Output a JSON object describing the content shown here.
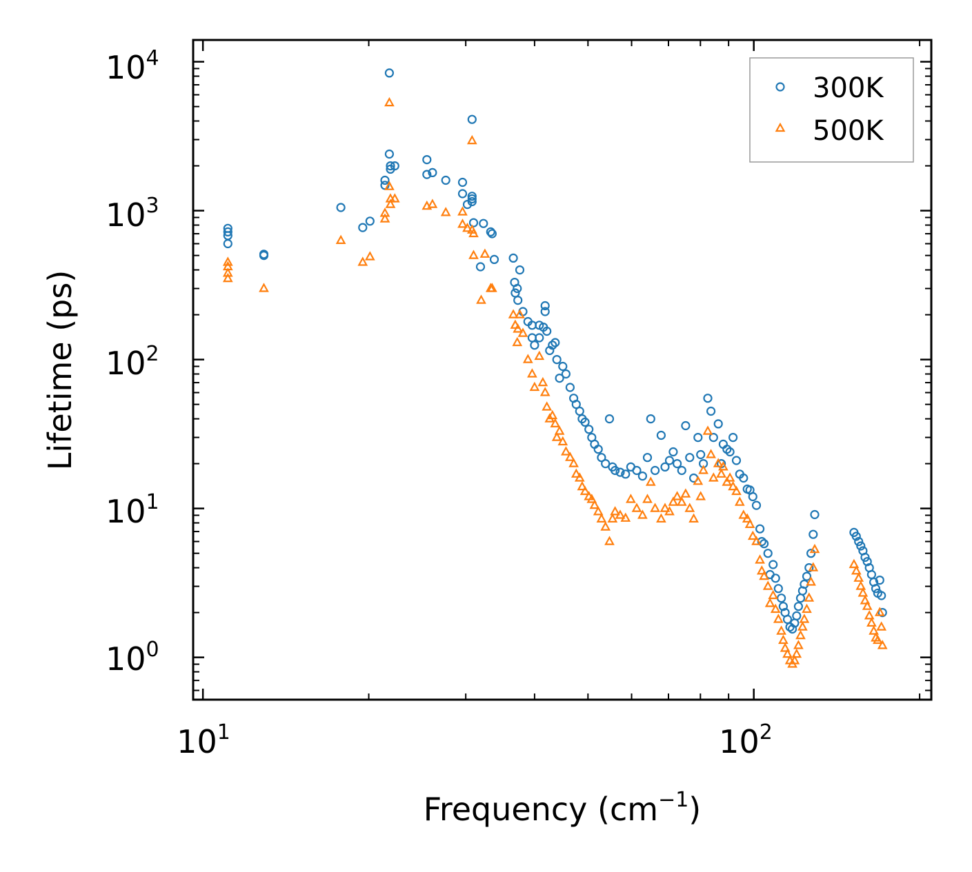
{
  "chart_data": {
    "type": "scatter",
    "xscale": "log",
    "yscale": "log",
    "xlim": [
      9.6,
      210
    ],
    "ylim": [
      0.52,
      14000
    ],
    "xlabel": "Frequency",
    "xlabel_unit_base": "cm",
    "xlabel_unit_exp": "−1",
    "ylabel": "Lifetime (ps)",
    "legend_position": "top-right",
    "x_major_ticks": [
      {
        "value": 10,
        "base": "10",
        "exp": "1"
      },
      {
        "value": 100,
        "base": "10",
        "exp": "2"
      }
    ],
    "y_major_ticks": [
      {
        "value": 1,
        "base": "10",
        "exp": "0"
      },
      {
        "value": 10,
        "base": "10",
        "exp": "1"
      },
      {
        "value": 100,
        "base": "10",
        "exp": "2"
      },
      {
        "value": 1000,
        "base": "10",
        "exp": "3"
      },
      {
        "value": 10000,
        "base": "10",
        "exp": "4"
      }
    ],
    "series": [
      {
        "name": "300K",
        "marker": "circle",
        "color": "#1f77b4",
        "points": [
          [
            11.1,
            760
          ],
          [
            11.1,
            720
          ],
          [
            11.1,
            680
          ],
          [
            11.1,
            600
          ],
          [
            12.9,
            510
          ],
          [
            12.9,
            500
          ],
          [
            17.8,
            1050
          ],
          [
            19.5,
            770
          ],
          [
            20.1,
            850
          ],
          [
            21.4,
            1600
          ],
          [
            21.4,
            1480
          ],
          [
            21.8,
            8400
          ],
          [
            21.8,
            2400
          ],
          [
            21.9,
            2000
          ],
          [
            21.9,
            1900
          ],
          [
            22.3,
            2000
          ],
          [
            25.5,
            2200
          ],
          [
            25.5,
            1750
          ],
          [
            26.1,
            1800
          ],
          [
            27.6,
            1600
          ],
          [
            29.6,
            1550
          ],
          [
            29.6,
            1300
          ],
          [
            30.2,
            1100
          ],
          [
            30.8,
            4100
          ],
          [
            30.8,
            1250
          ],
          [
            30.8,
            1200
          ],
          [
            30.8,
            1150
          ],
          [
            31.0,
            830
          ],
          [
            31.9,
            420
          ],
          [
            32.3,
            820
          ],
          [
            33.3,
            720
          ],
          [
            33.5,
            700
          ],
          [
            33.8,
            470
          ],
          [
            36.6,
            480
          ],
          [
            36.8,
            330
          ],
          [
            36.9,
            280
          ],
          [
            37.2,
            300
          ],
          [
            37.3,
            250
          ],
          [
            37.6,
            400
          ],
          [
            38.1,
            210
          ],
          [
            38.9,
            180
          ],
          [
            39.6,
            170
          ],
          [
            39.6,
            140
          ],
          [
            40.0,
            125
          ],
          [
            40.8,
            170
          ],
          [
            40.8,
            140
          ],
          [
            41.5,
            165
          ],
          [
            41.8,
            230
          ],
          [
            41.8,
            210
          ],
          [
            42.1,
            155
          ],
          [
            42.6,
            115
          ],
          [
            43.1,
            125
          ],
          [
            43.6,
            130
          ],
          [
            43.9,
            100
          ],
          [
            44.4,
            75
          ],
          [
            45.0,
            90
          ],
          [
            45.6,
            80
          ],
          [
            46.4,
            65
          ],
          [
            47.1,
            55
          ],
          [
            47.6,
            50
          ],
          [
            48.3,
            45
          ],
          [
            48.8,
            40
          ],
          [
            49.4,
            38
          ],
          [
            50.2,
            34
          ],
          [
            50.8,
            30
          ],
          [
            51.4,
            27
          ],
          [
            52.2,
            25
          ],
          [
            52.9,
            22
          ],
          [
            53.8,
            20
          ],
          [
            54.7,
            40
          ],
          [
            55.4,
            19
          ],
          [
            56.0,
            18
          ],
          [
            57.2,
            17.5
          ],
          [
            58.5,
            17
          ],
          [
            59.8,
            19
          ],
          [
            61.3,
            18
          ],
          [
            62.8,
            16.5
          ],
          [
            64.1,
            22
          ],
          [
            65.0,
            40
          ],
          [
            66.2,
            18
          ],
          [
            67.9,
            31
          ],
          [
            69.0,
            19
          ],
          [
            70.3,
            21
          ],
          [
            71.4,
            24
          ],
          [
            72.6,
            20
          ],
          [
            74.0,
            18
          ],
          [
            75.2,
            36
          ],
          [
            76.5,
            22
          ],
          [
            77.8,
            16
          ],
          [
            79.2,
            30
          ],
          [
            80.1,
            23
          ],
          [
            81.0,
            20
          ],
          [
            82.5,
            55
          ],
          [
            83.6,
            45
          ],
          [
            84.5,
            30
          ],
          [
            86.2,
            37
          ],
          [
            87.3,
            20
          ],
          [
            88.0,
            27
          ],
          [
            89.4,
            25
          ],
          [
            90.5,
            24
          ],
          [
            91.7,
            30
          ],
          [
            93.0,
            21
          ],
          [
            94.3,
            17
          ],
          [
            95.8,
            16
          ],
          [
            97.3,
            13.5
          ],
          [
            98.4,
            13.3
          ],
          [
            99.6,
            12
          ],
          [
            101.1,
            10.5
          ],
          [
            102.6,
            7.3
          ],
          [
            103.4,
            6
          ],
          [
            104.4,
            5.8
          ],
          [
            106.1,
            5
          ],
          [
            107.0,
            3.6
          ],
          [
            108.4,
            4.2
          ],
          [
            109.5,
            3.4
          ],
          [
            110.8,
            2.9
          ],
          [
            112.2,
            2.5
          ],
          [
            113.1,
            2.2
          ],
          [
            114.0,
            2.0
          ],
          [
            115.1,
            1.8
          ],
          [
            116.3,
            1.6
          ],
          [
            117.5,
            1.55
          ],
          [
            118.6,
            1.7
          ],
          [
            119.6,
            1.9
          ],
          [
            120.5,
            2.2
          ],
          [
            121.6,
            2.5
          ],
          [
            122.6,
            2.8
          ],
          [
            123.5,
            3.1
          ],
          [
            124.8,
            3.5
          ],
          [
            126.0,
            4.0
          ],
          [
            127.0,
            5.0
          ],
          [
            128.2,
            6.7
          ],
          [
            129.0,
            9.1
          ],
          [
            152.0,
            6.9
          ],
          [
            153.5,
            6.5
          ],
          [
            155.0,
            6.0
          ],
          [
            156.4,
            5.6
          ],
          [
            157.8,
            5.2
          ],
          [
            159.2,
            4.7
          ],
          [
            160.7,
            4.4
          ],
          [
            162.1,
            4.0
          ],
          [
            163.6,
            3.6
          ],
          [
            165.1,
            3.2
          ],
          [
            166.5,
            2.9
          ],
          [
            167.9,
            2.7
          ],
          [
            169.3,
            3.3
          ],
          [
            170.5,
            2.6
          ],
          [
            171.2,
            2.0
          ]
        ]
      },
      {
        "name": "500K",
        "marker": "triangle",
        "color": "#ff7f0e",
        "points": [
          [
            11.1,
            450
          ],
          [
            11.1,
            420
          ],
          [
            11.1,
            380
          ],
          [
            11.1,
            350
          ],
          [
            12.9,
            300
          ],
          [
            17.8,
            630
          ],
          [
            19.5,
            450
          ],
          [
            20.1,
            490
          ],
          [
            21.4,
            960
          ],
          [
            21.4,
            880
          ],
          [
            21.8,
            5300
          ],
          [
            21.8,
            1450
          ],
          [
            21.9,
            1200
          ],
          [
            21.9,
            1100
          ],
          [
            22.3,
            1200
          ],
          [
            25.5,
            1070
          ],
          [
            26.1,
            1100
          ],
          [
            27.6,
            970
          ],
          [
            29.6,
            980
          ],
          [
            29.6,
            810
          ],
          [
            30.2,
            760
          ],
          [
            30.8,
            2950
          ],
          [
            30.8,
            740
          ],
          [
            31.0,
            700
          ],
          [
            31.0,
            500
          ],
          [
            32.0,
            250
          ],
          [
            32.5,
            510
          ],
          [
            33.3,
            300
          ],
          [
            33.5,
            300
          ],
          [
            36.6,
            200
          ],
          [
            36.9,
            170
          ],
          [
            37.2,
            130
          ],
          [
            37.3,
            160
          ],
          [
            37.6,
            200
          ],
          [
            38.1,
            150
          ],
          [
            38.9,
            100
          ],
          [
            39.6,
            80
          ],
          [
            40.0,
            65
          ],
          [
            40.8,
            105
          ],
          [
            41.4,
            70
          ],
          [
            41.8,
            60
          ],
          [
            42.1,
            48
          ],
          [
            42.6,
            40
          ],
          [
            43.1,
            42
          ],
          [
            43.6,
            37
          ],
          [
            43.9,
            30
          ],
          [
            44.4,
            33
          ],
          [
            45.0,
            28
          ],
          [
            45.6,
            24
          ],
          [
            46.4,
            22
          ],
          [
            47.1,
            20
          ],
          [
            47.6,
            17
          ],
          [
            48.3,
            16
          ],
          [
            48.8,
            14
          ],
          [
            49.4,
            13
          ],
          [
            50.2,
            12
          ],
          [
            50.8,
            11.5
          ],
          [
            51.4,
            10.5
          ],
          [
            52.2,
            9.5
          ],
          [
            52.9,
            8.5
          ],
          [
            53.8,
            7.5
          ],
          [
            54.7,
            6.0
          ],
          [
            55.4,
            8.5
          ],
          [
            56.0,
            9.5
          ],
          [
            57.2,
            9
          ],
          [
            58.5,
            8.6
          ],
          [
            59.8,
            11.5
          ],
          [
            61.3,
            10
          ],
          [
            62.8,
            9
          ],
          [
            64.1,
            11.5
          ],
          [
            65.0,
            15
          ],
          [
            66.2,
            10
          ],
          [
            67.9,
            8.5
          ],
          [
            69.0,
            10
          ],
          [
            70.3,
            9.5
          ],
          [
            71.4,
            11
          ],
          [
            72.6,
            12
          ],
          [
            74.0,
            11
          ],
          [
            75.2,
            12.5
          ],
          [
            76.5,
            10
          ],
          [
            77.8,
            8.5
          ],
          [
            79.2,
            15.2
          ],
          [
            80.1,
            12
          ],
          [
            81.0,
            18
          ],
          [
            82.5,
            33
          ],
          [
            83.6,
            23
          ],
          [
            84.5,
            16
          ],
          [
            86.2,
            20
          ],
          [
            87.3,
            17
          ],
          [
            88.0,
            19
          ],
          [
            89.4,
            15
          ],
          [
            90.5,
            16
          ],
          [
            91.7,
            14
          ],
          [
            93.0,
            13
          ],
          [
            94.3,
            11
          ],
          [
            95.8,
            9
          ],
          [
            97.3,
            8.5
          ],
          [
            98.4,
            7.8
          ],
          [
            99.6,
            6.5
          ],
          [
            101.1,
            6
          ],
          [
            102.6,
            4.5
          ],
          [
            103.4,
            3.8
          ],
          [
            104.4,
            3.5
          ],
          [
            106.1,
            3.0
          ],
          [
            107.0,
            2.3
          ],
          [
            108.4,
            2.6
          ],
          [
            109.5,
            2.1
          ],
          [
            110.8,
            1.8
          ],
          [
            112.2,
            1.5
          ],
          [
            113.1,
            1.3
          ],
          [
            114.0,
            1.15
          ],
          [
            115.1,
            1.05
          ],
          [
            116.3,
            0.95
          ],
          [
            117.5,
            0.9
          ],
          [
            118.6,
            0.95
          ],
          [
            119.6,
            1.05
          ],
          [
            120.5,
            1.2
          ],
          [
            121.6,
            1.4
          ],
          [
            122.6,
            1.6
          ],
          [
            123.5,
            1.8
          ],
          [
            124.8,
            2.1
          ],
          [
            126.0,
            2.5
          ],
          [
            127.0,
            3.2
          ],
          [
            128.2,
            4.0
          ],
          [
            129.0,
            5.3
          ],
          [
            152.0,
            4.2
          ],
          [
            153.5,
            3.8
          ],
          [
            155.0,
            3.4
          ],
          [
            156.4,
            3.0
          ],
          [
            157.8,
            2.7
          ],
          [
            159.2,
            2.4
          ],
          [
            160.7,
            2.2
          ],
          [
            162.1,
            1.9
          ],
          [
            163.6,
            1.7
          ],
          [
            165.1,
            1.5
          ],
          [
            166.5,
            1.35
          ],
          [
            167.9,
            1.3
          ],
          [
            169.3,
            2.0
          ],
          [
            170.5,
            1.6
          ],
          [
            171.2,
            1.2
          ]
        ]
      }
    ]
  }
}
